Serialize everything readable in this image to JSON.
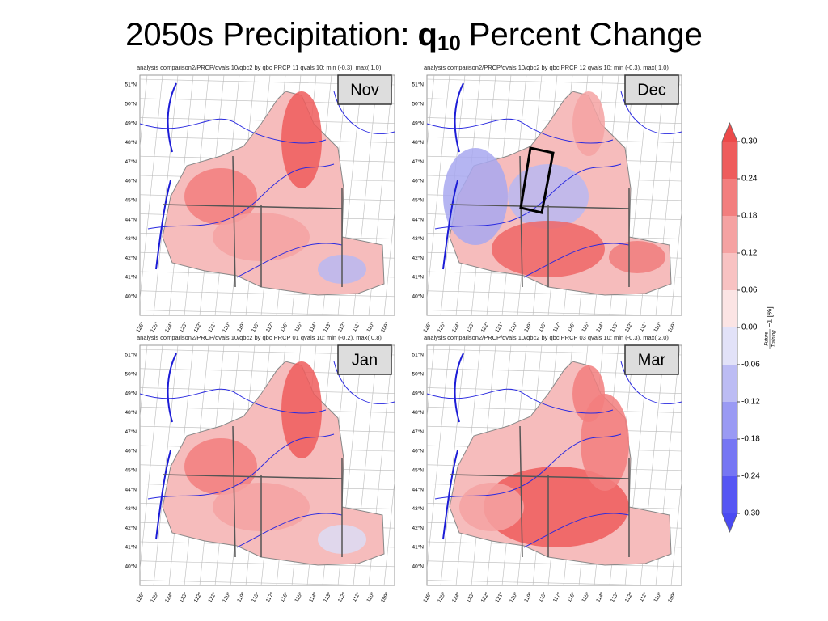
{
  "title": {
    "prefix": "2050s Precipitation:",
    "symbol": "q",
    "subscript": "10",
    "suffix": "Percent Change"
  },
  "panels": [
    {
      "header": "analysis comparison2/PRCP/qvals 10/qbc2  by  qbc  PRCP 11 qvals 10: min (-0.3), max( 1.0)",
      "month": "Nov"
    },
    {
      "header": "analysis comparison2/PRCP/qvals 10/qbc2  by  qbc  PRCP 12 qvals 10: min (-0.3), max( 1.0)",
      "month": "Dec"
    },
    {
      "header": "analysis comparison2/PRCP/qvals 10/qbc2  by  qbc  PRCP 01 qvals 10: min (-0.2), max( 0.8)",
      "month": "Jan"
    },
    {
      "header": "analysis comparison2/PRCP/qvals 10/qbc2  by  qbc  PRCP 03 qvals 10: min (-0.3), max( 2.0)",
      "month": "Mar"
    }
  ],
  "lat_labels": [
    "51°N",
    "50°N",
    "49°N",
    "48°N",
    "47°N",
    "46°N",
    "45°N",
    "44°N",
    "43°N",
    "42°N",
    "41°N",
    "40°N"
  ],
  "lon_labels": [
    "126°",
    "125°",
    "124°",
    "123°",
    "122°",
    "121°",
    "120°",
    "119°",
    "118°",
    "117°",
    "116°",
    "115°",
    "114°",
    "113°",
    "112°",
    "111°",
    "110°",
    "109°"
  ],
  "colorbar": {
    "clim": [
      -0.3,
      0.3
    ],
    "ticks": [
      {
        "value": 0.3,
        "label": "0.30"
      },
      {
        "value": 0.24,
        "label": "0.24"
      },
      {
        "value": 0.18,
        "label": "0.18"
      },
      {
        "value": 0.12,
        "label": "0.12"
      },
      {
        "value": 0.06,
        "label": "0.06"
      },
      {
        "value": 0.0,
        "label": "0.00"
      },
      {
        "value": -0.06,
        "label": "-0.06"
      },
      {
        "value": -0.12,
        "label": "-0.12"
      },
      {
        "value": -0.18,
        "label": "-0.18"
      },
      {
        "value": -0.24,
        "label": "-0.24"
      },
      {
        "value": -0.3,
        "label": "-0.30"
      }
    ],
    "colors": [
      "#5656f4",
      "#7676f4",
      "#9a9af4",
      "#bcbcf4",
      "#e2e2f8",
      "#fbe4e4",
      "#f8c2c2",
      "#f5a2a2",
      "#f27e7e",
      "#ee5c5c"
    ],
    "under_color": "#4a4af2",
    "over_color": "#ec4a4a",
    "label": {
      "numerator": "Future",
      "denominator": "Training",
      "rest": "−1 [%]"
    }
  }
}
